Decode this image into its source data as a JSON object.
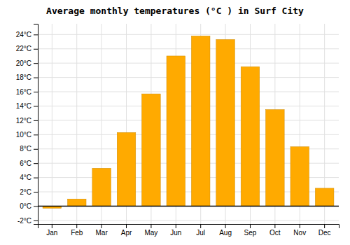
{
  "chart_data": {
    "type": "bar",
    "title": "Average monthly temperatures (°C ) in Surf City",
    "categories": [
      "Jan",
      "Feb",
      "Mar",
      "Apr",
      "May",
      "Jun",
      "Jul",
      "Aug",
      "Sep",
      "Oct",
      "Nov",
      "Dec"
    ],
    "values": [
      -0.3,
      1.0,
      5.3,
      10.3,
      15.7,
      21.0,
      23.8,
      23.3,
      19.5,
      13.5,
      8.3,
      2.5
    ],
    "color": "#FFAA00",
    "ylim": [
      -2.5,
      25.5
    ],
    "yticks": [
      {
        "value": -2,
        "label": "-2°C"
      },
      {
        "value": 0,
        "label": "0°C"
      },
      {
        "value": 2,
        "label": "2°C"
      },
      {
        "value": 4,
        "label": "4°C"
      },
      {
        "value": 6,
        "label": "6°C"
      },
      {
        "value": 8,
        "label": "8°C"
      },
      {
        "value": 10,
        "label": "10°C"
      },
      {
        "value": 12,
        "label": "12°C"
      },
      {
        "value": 14,
        "label": "14°C"
      },
      {
        "value": 16,
        "label": "16°C"
      },
      {
        "value": 18,
        "label": "18°C"
      },
      {
        "value": 20,
        "label": "20°C"
      },
      {
        "value": 22,
        "label": "22°C"
      },
      {
        "value": 24,
        "label": "24°C"
      }
    ],
    "grid": true
  }
}
